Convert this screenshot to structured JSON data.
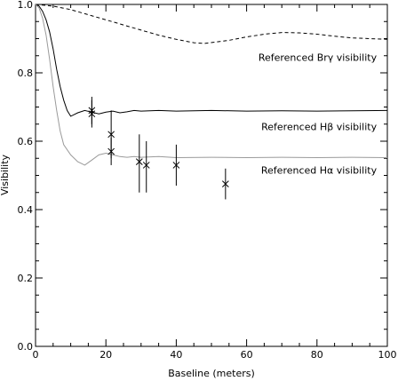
{
  "chart_data": {
    "type": "line",
    "title": "",
    "xlabel": "Baseline (meters)",
    "ylabel": "Visibility",
    "xlim": [
      0,
      100
    ],
    "ylim": [
      0.0,
      1.0
    ],
    "grid": false,
    "legend": "none",
    "x_ticks": [
      0,
      20,
      40,
      60,
      80,
      100
    ],
    "x_tick_labels": [
      "0",
      "20",
      "40",
      "60",
      "80",
      "100"
    ],
    "y_ticks": [
      0.0,
      0.2,
      0.4,
      0.6,
      0.8,
      1.0
    ],
    "y_tick_labels": [
      "0.0",
      "0.2",
      "0.4",
      "0.6",
      "0.8",
      "1.0"
    ],
    "series": [
      {
        "style": "dashed",
        "color": "#000000",
        "x": [
          0,
          5,
          10,
          15,
          20,
          25,
          30,
          35,
          40,
          45,
          48,
          55,
          60,
          65,
          70,
          75,
          80,
          85,
          90,
          95,
          100
        ],
        "y": [
          1.0,
          0.995,
          0.985,
          0.97,
          0.955,
          0.94,
          0.925,
          0.91,
          0.898,
          0.888,
          0.886,
          0.895,
          0.905,
          0.913,
          0.918,
          0.917,
          0.913,
          0.907,
          0.902,
          0.9,
          0.898
        ]
      },
      {
        "style": "solid",
        "color": "#000000",
        "x": [
          0,
          1,
          2,
          3,
          4,
          5,
          6,
          7,
          8,
          9,
          10,
          12,
          14,
          16,
          18,
          20,
          22,
          24,
          26,
          28,
          30,
          35,
          40,
          50,
          60,
          70,
          80,
          90,
          100
        ],
        "y": [
          1.0,
          0.995,
          0.98,
          0.955,
          0.92,
          0.87,
          0.81,
          0.76,
          0.72,
          0.69,
          0.673,
          0.683,
          0.69,
          0.685,
          0.68,
          0.685,
          0.688,
          0.683,
          0.686,
          0.69,
          0.688,
          0.69,
          0.688,
          0.69,
          0.688,
          0.689,
          0.688,
          0.689,
          0.69
        ]
      },
      {
        "style": "solid-gray",
        "color": "#9a9a9a",
        "x": [
          0,
          1,
          2,
          3,
          4,
          5,
          6,
          7,
          8,
          10,
          12,
          14,
          16,
          18,
          20,
          22,
          24,
          26,
          28,
          30,
          35,
          40,
          50,
          60,
          70,
          80,
          90,
          100
        ],
        "y": [
          1.0,
          0.99,
          0.96,
          0.91,
          0.84,
          0.76,
          0.69,
          0.63,
          0.59,
          0.56,
          0.54,
          0.53,
          0.545,
          0.56,
          0.565,
          0.56,
          0.555,
          0.553,
          0.555,
          0.553,
          0.555,
          0.552,
          0.553,
          0.552,
          0.553,
          0.552,
          0.553,
          0.552
        ]
      }
    ],
    "points": [
      {
        "x": 16,
        "y": 0.68,
        "yerr_low": 0.64,
        "yerr_high": 0.72
      },
      {
        "x": 16,
        "y": 0.69,
        "yerr_low": 0.65,
        "yerr_high": 0.73
      },
      {
        "x": 21.5,
        "y": 0.62,
        "yerr_low": 0.55,
        "yerr_high": 0.69
      },
      {
        "x": 21.5,
        "y": 0.57,
        "yerr_low": 0.53,
        "yerr_high": 0.61
      },
      {
        "x": 29.5,
        "y": 0.54,
        "yerr_low": 0.45,
        "yerr_high": 0.62
      },
      {
        "x": 31.5,
        "y": 0.53,
        "yerr_low": 0.45,
        "yerr_high": 0.6
      },
      {
        "x": 40,
        "y": 0.53,
        "yerr_low": 0.47,
        "yerr_high": 0.59
      },
      {
        "x": 54,
        "y": 0.475,
        "yerr_low": 0.43,
        "yerr_high": 0.52
      }
    ],
    "annotations": [
      {
        "text": "Referenced Brγ visibility",
        "x": 97,
        "y": 0.835
      },
      {
        "text": "Referenced Hβ visibility",
        "x": 97,
        "y": 0.632
      },
      {
        "text": "Referenced Hα visibility",
        "x": 97,
        "y": 0.505
      }
    ]
  }
}
